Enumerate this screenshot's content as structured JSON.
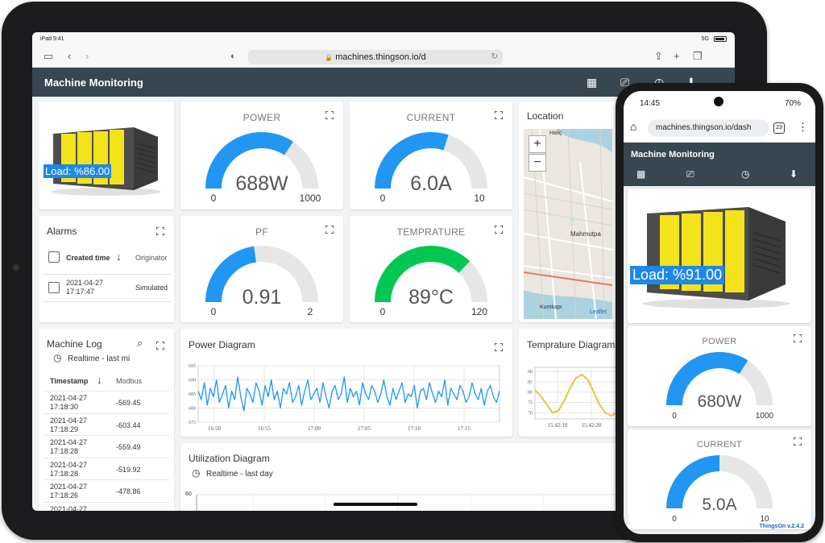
{
  "tablet": {
    "status": {
      "time": "iPad 9:41",
      "network": "5G"
    },
    "browser": {
      "url": "machines.thingson.io/d"
    },
    "app_title": "Machine Monitoring",
    "machine": {
      "load": "Load: %86.00"
    },
    "gauges": {
      "power": {
        "title": "POWER",
        "value": "688W",
        "min": "0",
        "max": "1000",
        "fraction": 0.688,
        "color": "#2196f3"
      },
      "current": {
        "title": "CURRENT",
        "value": "6.0A",
        "min": "0",
        "max": "10",
        "fraction": 0.6,
        "color": "#2196f3"
      },
      "pf": {
        "title": "PF",
        "value": "0.91",
        "min": "0",
        "max": "2",
        "fraction": 0.455,
        "color": "#2196f3"
      },
      "temperature": {
        "title": "TEMPRATURE",
        "value": "89°C",
        "min": "0",
        "max": "120",
        "fraction": 0.742,
        "color": "#00c853"
      }
    },
    "location": {
      "title": "Location",
      "zoom_in": "+",
      "zoom_out": "−",
      "map_labels": [
        "Haliç",
        "Mahmutpa",
        "Kumkapı",
        "Leaflet"
      ]
    },
    "alarms": {
      "title": "Alarms",
      "columns": [
        "Created time",
        "Originator"
      ],
      "rows": [
        {
          "created_time": "2021-04-27 17:17:47",
          "originator": "Simulated"
        }
      ]
    },
    "machine_log": {
      "title": "Machine Log",
      "realtime": "Realtime - last mi",
      "columns": [
        "Timestamp",
        "Modbus"
      ],
      "rows": [
        {
          "timestamp": "2021-04-27 17:18:30",
          "value": "-569.45"
        },
        {
          "timestamp": "2021-04-27 17:18:29",
          "value": "-603.44"
        },
        {
          "timestamp": "2021-04-27 17:18:28",
          "value": "-559.49"
        },
        {
          "timestamp": "2021-04-27 17:18:28",
          "value": "-519.92"
        },
        {
          "timestamp": "2021-04-27 17:18:26",
          "value": "-478.86"
        },
        {
          "timestamp": "2021-04-27",
          "value": ""
        }
      ]
    },
    "power_diagram": {
      "title": "Power Diagram"
    },
    "temperature_diagram": {
      "title": "Temprature Diagram"
    },
    "utilization_diagram": {
      "title": "Utilization Diagram",
      "realtime": "Realtime - last day",
      "y_tick": "60"
    }
  },
  "phone": {
    "status": {
      "time": "14:45",
      "battery": "70%"
    },
    "browser": {
      "url": "machines.thingson.io/dash",
      "tabs": "23"
    },
    "app_title": "Machine Monitoring",
    "machine": {
      "load": "Load: %91.00"
    },
    "gauges": {
      "power": {
        "title": "POWER",
        "value": "680W",
        "min": "0",
        "max": "1000",
        "fraction": 0.68,
        "color": "#2196f3"
      },
      "current": {
        "title": "CURRENT",
        "value": "5.0A",
        "min": "0",
        "max": "10",
        "fraction": 0.5,
        "color": "#2196f3"
      }
    },
    "version": "ThingsOn v.2.4.2"
  },
  "chart_data": [
    {
      "type": "line",
      "title": "Power Diagram",
      "x_ticks": [
        "16:50",
        "16:55",
        "17:00",
        "17:05",
        "17:10",
        "17:15"
      ],
      "y_ticks": [
        675,
        680,
        685,
        690,
        695
      ],
      "ylim": [
        675,
        695
      ],
      "series": [
        {
          "color": "#2196f3",
          "values": [
            686,
            683,
            689,
            681,
            687,
            684,
            690,
            682,
            685,
            688,
            680,
            686,
            683,
            691,
            684,
            679,
            687,
            685,
            682,
            689,
            686,
            681,
            688,
            684,
            690,
            683,
            686,
            680,
            687,
            685,
            689,
            682,
            684,
            688,
            681,
            686,
            690,
            683,
            685,
            687,
            682,
            689,
            684,
            680,
            686,
            688,
            683,
            685,
            691,
            682,
            687,
            684,
            686,
            681,
            689,
            685,
            683,
            688,
            686,
            682,
            685,
            690,
            684,
            681,
            687,
            683,
            686,
            689,
            682,
            685,
            684,
            688,
            680,
            686,
            687,
            683,
            689,
            685,
            682,
            686,
            684,
            690,
            681,
            687,
            685,
            683,
            688,
            686,
            682,
            684,
            689,
            685,
            683,
            687,
            681,
            686,
            688,
            684,
            682,
            686
          ]
        }
      ]
    },
    {
      "type": "line",
      "title": "Temprature Diagram",
      "x_ticks": [
        "15:42:10",
        "15:42:20"
      ],
      "y_ticks": [
        70,
        75,
        80,
        85,
        90
      ],
      "ylim": [
        67,
        92
      ],
      "series": [
        {
          "color": "#e6c84c",
          "values": [
            81,
            78,
            74,
            70,
            71,
            76,
            82,
            87,
            88.5,
            86,
            80,
            74,
            70,
            68.5,
            70
          ]
        }
      ]
    }
  ]
}
